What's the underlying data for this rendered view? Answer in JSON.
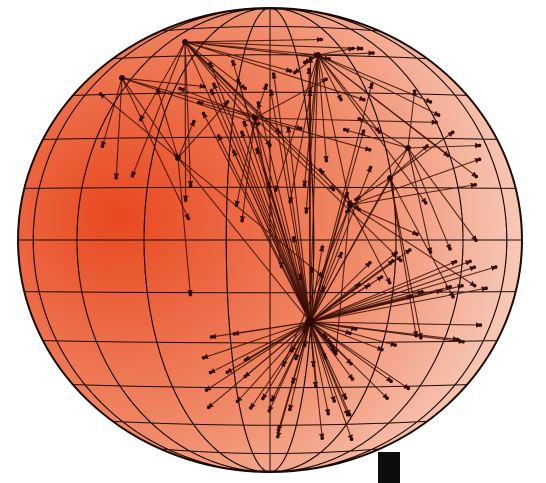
{
  "colors": {
    "background": "#ffffff",
    "sphere_dark": "#e8481f",
    "sphere_mid": "#f08a68",
    "sphere_light": "#fbe5dc",
    "grid": "#1a0a05",
    "edge": "#3a0e05",
    "node": "#2a0602",
    "stand": "#0d0d0d"
  },
  "icons": {
    "globe": "graph-on-sphere-icon"
  }
}
